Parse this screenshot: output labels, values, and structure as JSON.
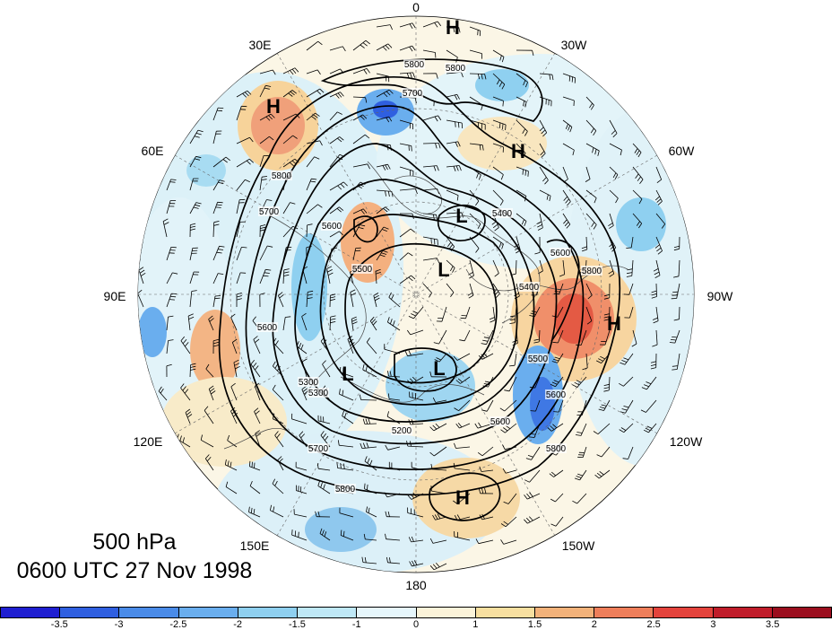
{
  "title": {
    "level": "500 hPa",
    "time": "0600 UTC 27 Nov 1998"
  },
  "longitude_labels": [
    "0",
    "30W",
    "60W",
    "90W",
    "120W",
    "150W",
    "180",
    "150E",
    "120E",
    "90E",
    "60E",
    "30E"
  ],
  "pressure_centers": [
    "H",
    "H",
    "H",
    "H",
    "H",
    "L",
    "L",
    "L",
    "L"
  ],
  "contour_labels": [
    "5800",
    "5800",
    "5700",
    "5800",
    "5700",
    "5600",
    "5500",
    "5400",
    "5600",
    "5800",
    "5600",
    "5300",
    "5200",
    "5300",
    "5400",
    "5500",
    "5600",
    "5700",
    "5800",
    "5600",
    "5800"
  ],
  "colorbar": {
    "ticks": [
      "-3.5",
      "-3",
      "-2.5",
      "-2",
      "-1.5",
      "-1",
      "0",
      "1",
      "1.5",
      "2",
      "2.5",
      "3",
      "3.5"
    ],
    "colors": [
      "#1f1fd1",
      "#2f5fe0",
      "#4a8be8",
      "#6aaeee",
      "#8fd0f0",
      "#bfe8f6",
      "#e6f6fb",
      "#fbf3d9",
      "#f7dfa0",
      "#f3b27a",
      "#ee7e5a",
      "#e4433c",
      "#c01c2a",
      "#9b0e1e"
    ]
  }
}
